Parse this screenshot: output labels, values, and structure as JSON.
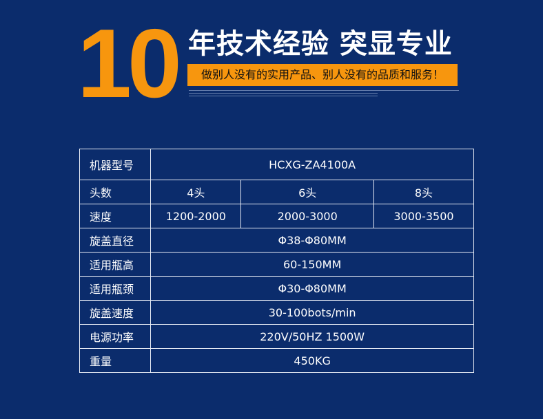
{
  "banner": {
    "number": "10",
    "headline": "年技术经验 突显专业",
    "slogan": "做别人没有的实用产品、别人没有的品质和服务！",
    "accent_color": "#f7960e",
    "background_color": "#0b2c6c"
  },
  "specs": {
    "rows": [
      {
        "label": "机器型号",
        "values": [
          "HCXG-ZA4100A"
        ]
      },
      {
        "label": "头数",
        "values": [
          "4头",
          "6头",
          "8头"
        ]
      },
      {
        "label": "速度",
        "values": [
          "1200-2000",
          "2000-3000",
          "3000-3500"
        ]
      },
      {
        "label": "旋盖直径",
        "values": [
          "Φ38-Φ80MM"
        ]
      },
      {
        "label": "适用瓶高",
        "values": [
          "60-150MM"
        ]
      },
      {
        "label": "适用瓶颈",
        "values": [
          "Φ30-Φ80MM"
        ]
      },
      {
        "label": "旋盖速度",
        "values": [
          "30-100bots/min"
        ]
      },
      {
        "label": "电源功率",
        "values": [
          "220V/50HZ  1500W"
        ]
      },
      {
        "label": "重量",
        "values": [
          "450KG"
        ]
      }
    ]
  }
}
